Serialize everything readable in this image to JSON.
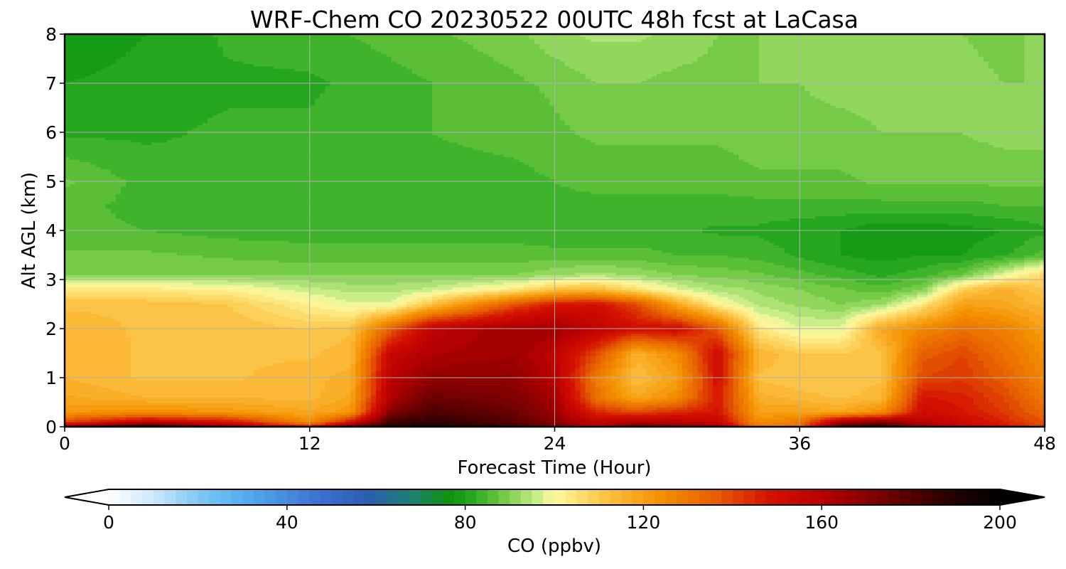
{
  "chart_data": {
    "type": "heatmap",
    "title": "WRF-Chem CO  20230522 00UTC 48h fcst at LaCasa",
    "xlabel": "Forecast Time (Hour)",
    "ylabel": "Alt AGL (km)",
    "xlim": [
      0,
      48
    ],
    "ylim": [
      0,
      8
    ],
    "xticks": [
      0,
      12,
      24,
      36,
      48
    ],
    "yticks": [
      0,
      1,
      2,
      3,
      4,
      5,
      6,
      7,
      8
    ],
    "grid": true,
    "colorbar": {
      "label": "CO  (ppbv)",
      "range": [
        0,
        200
      ],
      "ticks": [
        0,
        40,
        80,
        120,
        160,
        200
      ],
      "extend": "both",
      "stops": [
        {
          "v": 0,
          "c": "#ffffff"
        },
        {
          "v": 10,
          "c": "#cde8fb"
        },
        {
          "v": 20,
          "c": "#7fc8f5"
        },
        {
          "v": 30,
          "c": "#55aef0"
        },
        {
          "v": 48,
          "c": "#3a6fd0"
        },
        {
          "v": 58,
          "c": "#2a5db0"
        },
        {
          "v": 68,
          "c": "#1e8070"
        },
        {
          "v": 76,
          "c": "#109010"
        },
        {
          "v": 80,
          "c": "#18a018"
        },
        {
          "v": 88,
          "c": "#6cc840"
        },
        {
          "v": 96,
          "c": "#c8ec88"
        },
        {
          "v": 100,
          "c": "#fffaa0"
        },
        {
          "v": 112,
          "c": "#fcc040"
        },
        {
          "v": 124,
          "c": "#f49000"
        },
        {
          "v": 136,
          "c": "#e66000"
        },
        {
          "v": 148,
          "c": "#d41200"
        },
        {
          "v": 160,
          "c": "#b80000"
        },
        {
          "v": 176,
          "c": "#6a0000"
        },
        {
          "v": 190,
          "c": "#200000"
        },
        {
          "v": 200,
          "c": "#000000"
        }
      ]
    },
    "field": {
      "x": [
        0,
        4,
        8,
        12,
        14,
        16,
        18,
        22,
        24,
        26,
        28,
        30,
        32,
        34,
        36,
        38,
        40,
        42,
        44,
        46,
        48
      ],
      "y": [
        0,
        0.1,
        0.3,
        0.6,
        1.0,
        1.5,
        2.0,
        2.5,
        2.8,
        3.1,
        3.5,
        4.0,
        4.5,
        5.0,
        6.0,
        7.0,
        8.0
      ],
      "values": [
        [
          170,
          195,
          168,
          150,
          180,
          190,
          192,
          185,
          175,
          160,
          178,
          172,
          168,
          128,
          132,
          182,
          190,
          168,
          158,
          150,
          140
        ],
        [
          140,
          158,
          150,
          125,
          150,
          185,
          188,
          180,
          170,
          158,
          162,
          160,
          155,
          125,
          130,
          165,
          172,
          160,
          152,
          145,
          138
        ],
        [
          122,
          125,
          122,
          118,
          122,
          172,
          182,
          176,
          166,
          145,
          140,
          145,
          148,
          120,
          120,
          118,
          125,
          152,
          148,
          142,
          134
        ],
        [
          118,
          115,
          115,
          114,
          118,
          162,
          176,
          172,
          164,
          132,
          118,
          125,
          148,
          116,
          114,
          112,
          114,
          148,
          146,
          140,
          130
        ],
        [
          115,
          112,
          112,
          114,
          116,
          160,
          168,
          168,
          160,
          130,
          112,
          120,
          150,
          112,
          110,
          110,
          112,
          140,
          142,
          136,
          126
        ],
        [
          115,
          112,
          112,
          112,
          114,
          155,
          162,
          165,
          158,
          140,
          116,
          125,
          152,
          115,
          110,
          110,
          112,
          136,
          140,
          132,
          124
        ],
        [
          114,
          112,
          112,
          110,
          112,
          136,
          158,
          165,
          165,
          158,
          150,
          152,
          136,
          104,
          98,
          98,
          118,
          126,
          132,
          128,
          120
        ],
        [
          112,
          112,
          110,
          102,
          98,
          98,
          112,
          138,
          148,
          150,
          140,
          118,
          102,
          94,
          92,
          90,
          92,
          104,
          120,
          118,
          114
        ],
        [
          104,
          104,
          102,
          96,
          94,
          94,
          96,
          104,
          112,
          114,
          106,
          98,
          94,
          92,
          90,
          88,
          86,
          90,
          110,
          116,
          110
        ],
        [
          90,
          90,
          90,
          90,
          90,
          90,
          90,
          90,
          92,
          94,
          92,
          90,
          89,
          88,
          86,
          84,
          82,
          84,
          88,
          98,
          108
        ],
        [
          88,
          88,
          87,
          86,
          86,
          86,
          86,
          86,
          86,
          86,
          86,
          85,
          85,
          84,
          82,
          80,
          79,
          80,
          80,
          82,
          86
        ],
        [
          86,
          85,
          84,
          84,
          84,
          84,
          84,
          84,
          83,
          83,
          83,
          83,
          82,
          82,
          81,
          80,
          78,
          78,
          79,
          80,
          82
        ],
        [
          86,
          84,
          84,
          83,
          83,
          83,
          83,
          84,
          84,
          84,
          84,
          84,
          84,
          84,
          84,
          84,
          84,
          84,
          84,
          85,
          85
        ],
        [
          88,
          84,
          83,
          83,
          83,
          83,
          84,
          84,
          85,
          86,
          86,
          86,
          86,
          87,
          87,
          87,
          88,
          88,
          88,
          88,
          88
        ],
        [
          82,
          82,
          83,
          83,
          84,
          84,
          85,
          86,
          87,
          88,
          88,
          88,
          88,
          89,
          89,
          89,
          90,
          90,
          90,
          91,
          91
        ],
        [
          80,
          81,
          82,
          82,
          83,
          84,
          85,
          87,
          88,
          90,
          90,
          89,
          89,
          90,
          90,
          91,
          91,
          91,
          91,
          90,
          90
        ],
        [
          78,
          80,
          83,
          84,
          85,
          86,
          87,
          89,
          92,
          93,
          93,
          92,
          90,
          90,
          91,
          91,
          91,
          90,
          90,
          89,
          91
        ]
      ]
    }
  }
}
